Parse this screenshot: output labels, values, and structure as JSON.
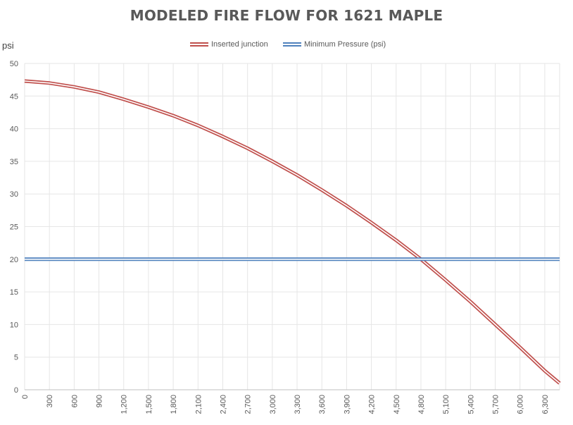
{
  "chart_data": {
    "type": "line",
    "title": "MODELED FIRE FLOW FOR 1621 MAPLE",
    "ylabel": "psi",
    "xlabel": "",
    "xlim": [
      0,
      6480
    ],
    "ylim": [
      0,
      50
    ],
    "x_ticks": [
      "0",
      "300",
      "600",
      "900",
      "1,200",
      "1,500",
      "1,800",
      "2,100",
      "2,400",
      "2,700",
      "3,000",
      "3,300",
      "3,600",
      "3,900",
      "4,200",
      "4,500",
      "4,800",
      "5,100",
      "5,400",
      "5,700",
      "6,000",
      "6,300"
    ],
    "x_tick_values": [
      0,
      300,
      600,
      900,
      1200,
      1500,
      1800,
      2100,
      2400,
      2700,
      3000,
      3300,
      3600,
      3900,
      4200,
      4500,
      4800,
      5100,
      5400,
      5700,
      6000,
      6300
    ],
    "y_ticks": [
      "0",
      "5",
      "10",
      "15",
      "20",
      "25",
      "30",
      "35",
      "40",
      "45",
      "50"
    ],
    "y_tick_values": [
      0,
      5,
      10,
      15,
      20,
      25,
      30,
      35,
      40,
      45,
      50
    ],
    "grid": true,
    "legend_position": "top",
    "series": [
      {
        "name": "Inserted junction",
        "color": "#c0504d",
        "x": [
          0,
          300,
          600,
          900,
          1200,
          1500,
          1800,
          2100,
          2400,
          2700,
          3000,
          3300,
          3600,
          3900,
          4200,
          4500,
          4800,
          5100,
          5400,
          5700,
          6000,
          6300,
          6480
        ],
        "y": [
          47.3,
          47.0,
          46.4,
          45.6,
          44.5,
          43.3,
          42.0,
          40.5,
          38.8,
          37.0,
          35.0,
          32.9,
          30.6,
          28.2,
          25.6,
          22.9,
          20.0,
          16.8,
          13.5,
          10.0,
          6.5,
          2.9,
          1.0
        ]
      },
      {
        "name": "Minimum Pressure (psi)",
        "color": "#4f81bd",
        "x": [
          0,
          6480
        ],
        "y": [
          20,
          20
        ]
      }
    ]
  }
}
